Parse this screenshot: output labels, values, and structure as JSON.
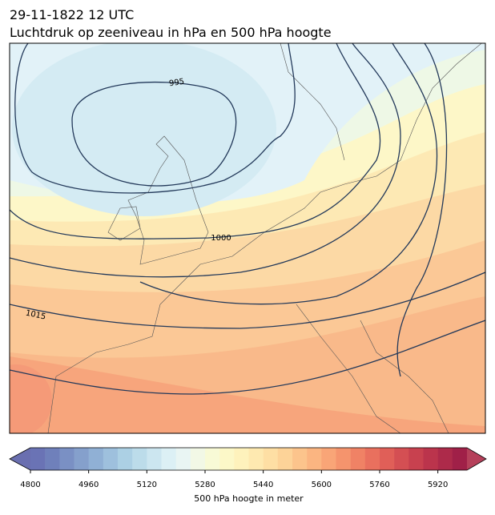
{
  "header": {
    "date": "29-11-1822 12 UTC",
    "title": "Luchtdruk op zeeniveau in hPa en 500 hPa hoogte"
  },
  "map": {
    "contour_labels": [
      995,
      1000,
      1015
    ]
  },
  "colorbar": {
    "label": "500 hPa hoogte in meter",
    "lim": [
      4800,
      6000
    ],
    "ticks": [
      4800,
      4960,
      5120,
      5280,
      5440,
      5600,
      5760,
      5920
    ],
    "colors": [
      "#6a73b5",
      "#6f80bb",
      "#7a90c4",
      "#85a0cc",
      "#90b0d5",
      "#9ec0dd",
      "#acd0e4",
      "#bcdcea",
      "#cce6f0",
      "#dcf0f5",
      "#e9f5f3",
      "#f2f8e6",
      "#f8fad6",
      "#fcf8c8",
      "#fef2bc",
      "#fee9b0",
      "#fedfa4",
      "#fdd398",
      "#fcc48c",
      "#fbb581",
      "#f9a577",
      "#f5946d",
      "#f08265",
      "#e9705e",
      "#e05f58",
      "#d44f53",
      "#c8414f",
      "#bb344c",
      "#ad2a4a",
      "#a02048"
    ],
    "extend_colors": [
      "#6a6fb0",
      "#b5405a"
    ]
  }
}
